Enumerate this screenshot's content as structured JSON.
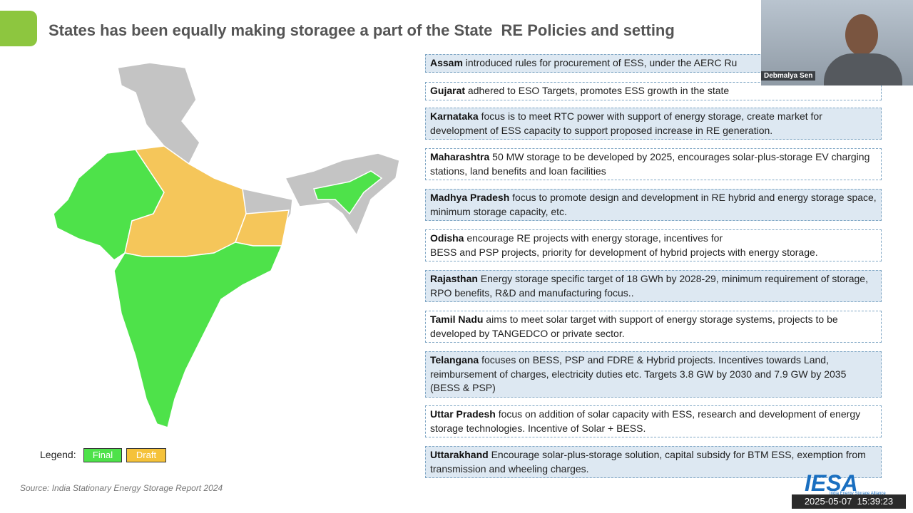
{
  "header": {
    "title": "States has been equally making storagee a part of the State  RE Policies and setting"
  },
  "entries": [
    {
      "state": "Assam",
      "text": " introduced rules for procurement of ESS, under the AERC Ru"
    },
    {
      "state": "Gujarat",
      "text": " adhered to ESO Targets, promotes ESS growth in the state"
    },
    {
      "state": "Karnataka",
      "text": " focus is to meet RTC power with support of energy storage, create market for development of ESS capacity to support proposed increase in RE generation."
    },
    {
      "state": "Maharashtra",
      "text": " 50 MW storage to be developed by 2025, encourages solar-plus-storage EV charging stations, land  benefits and loan facilities"
    },
    {
      "state": "Madhya Pradesh",
      "text": " focus to promote design and development in RE hybrid and energy storage space, minimum storage capacity, etc."
    },
    {
      "state": "Odisha",
      "text": " encourage RE projects with energy storage, incentives for\nBESS and PSP projects, priority for development of hybrid projects with energy storage."
    },
    {
      "state": "Rajasthan",
      "text": " Energy storage specific target of 18 GWh by 2028-29, minimum requirement of storage, RPO benefits, R&D and manufacturing focus.."
    },
    {
      "state": "Tamil Nadu",
      "text": " aims to meet solar target with support of energy storage systems, projects to be developed by TANGEDCO or private sector."
    },
    {
      "state": "Telangana",
      "text": " focuses on BESS, PSP and FDRE & Hybrid projects. Incentives towards Land, reimbursement of charges, electricity duties etc. Targets 3.8 GW by 2030 and 7.9 GW by 2035 (BESS   & PSP)"
    },
    {
      "state": "Uttar Pradesh",
      "text": " focus on addition of solar capacity with ESS, research and development of energy storage technologies.  Incentive of Solar + BESS."
    },
    {
      "state": "Uttarakhand",
      "text": " Encourage solar-plus-storage solution, capital subsidy for BTM ESS, exemption from transmission and wheeling charges."
    }
  ],
  "legend": {
    "label": "Legend:",
    "final": "Final",
    "draft": "Draft"
  },
  "source": "Source: India Stationary Energy Storage Report 2024",
  "logo": {
    "name": "IESA",
    "subtitle": "India Energy Storage Alliance"
  },
  "webcam": {
    "name": "Debmalya Sen"
  },
  "timestamp": "2025-05-07  15:39:23"
}
